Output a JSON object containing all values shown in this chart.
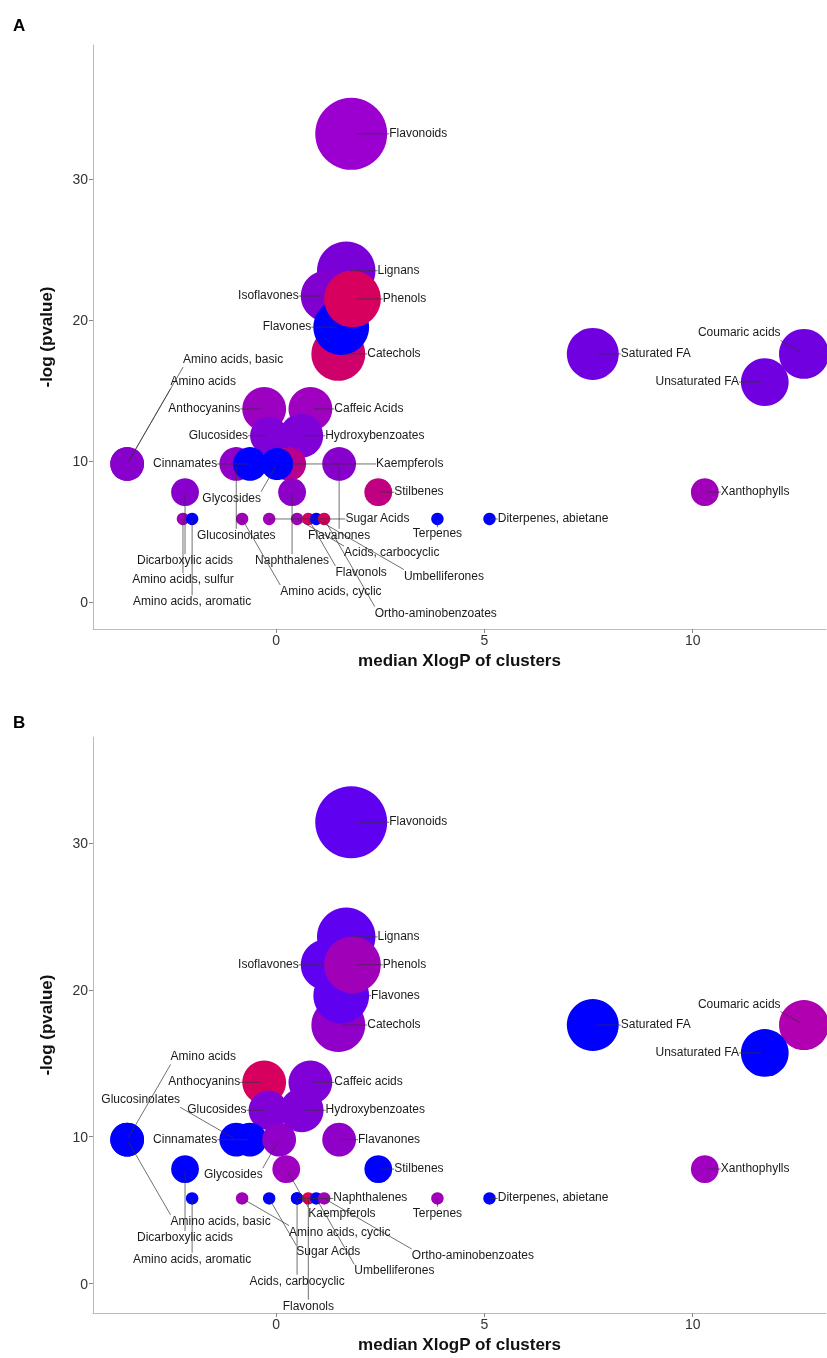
{
  "chart_data": [
    {
      "type": "bubble",
      "title": "A",
      "xlabel": "median XlogP of clusters",
      "ylabel": "-log (pvalue)",
      "xlim": [
        -4.4,
        13.2
      ],
      "ylim": [
        -1.9,
        39.5
      ],
      "xticks": [
        0,
        5,
        10
      ],
      "yticks": [
        0,
        10,
        20,
        30
      ],
      "grid": false,
      "x": [
        1.8,
        1.68,
        1.2,
        1.49,
        1.56,
        1.83,
        7.6,
        12.67,
        11.73,
        -0.29,
        0.82,
        0.6,
        -0.17,
        -0.96,
        -0.63,
        0.31,
        0.02,
        1.51,
        -3.58,
        -3.58,
        -2.19,
        0.38,
        2.45,
        10.29,
        -2.24,
        -2.02,
        -0.82,
        -0.17,
        0.5,
        0.77,
        0.96,
        1.15,
        3.87,
        5.12
      ],
      "values": [
        33.2,
        23.5,
        21.7,
        17.6,
        19.5,
        21.5,
        17.6,
        17.6,
        15.6,
        13.7,
        13.7,
        11.8,
        11.8,
        9.8,
        9.8,
        9.8,
        9.8,
        9.8,
        9.8,
        9.8,
        7.8,
        7.8,
        7.8,
        7.8,
        5.9,
        5.9,
        5.9,
        5.9,
        5.9,
        5.9,
        5.9,
        5.9,
        5.9,
        5.9
      ],
      "sizes": [
        1,
        0.66,
        0.5,
        0.56,
        0.6,
        0.62,
        0.52,
        0.48,
        0.44,
        0.37,
        0.37,
        0.37,
        0.28,
        0.22,
        0.22,
        0.22,
        0.2,
        0.22,
        0.22,
        0.22,
        0.15,
        0.15,
        0.15,
        0.15,
        0.03,
        0.03,
        0.03,
        0.03,
        0.03,
        0.03,
        0.03,
        0.03,
        0.03,
        0.03
      ],
      "colors": [
        "#9b00d0",
        "#7a00d8",
        "#8000d0",
        "#d0006a",
        "#0000ff",
        "#d8005e",
        "#7000e0",
        "#7000e0",
        "#7000e0",
        "#9c00c0",
        "#a000c0",
        "#8000d8",
        "#8000d8",
        "#9000c8",
        "#0000ff",
        "#b8008c",
        "#0000ff",
        "#8800cc",
        "#8800cc",
        "#8800cc",
        "#8800cc",
        "#8c00c8",
        "#c00080",
        "#a000b8",
        "#a000b8",
        "#0000ff",
        "#a000b8",
        "#a000b8",
        "#a000b8",
        "#d8005e",
        "#0000ff",
        "#d8005e",
        "#0000ff",
        "#0000ff"
      ],
      "annotations": [
        {
          "text": "Flavonoids",
          "x": 1.8,
          "y": 33.2
        },
        {
          "text": "Lignans",
          "x": 1.68,
          "y": 23.5
        },
        {
          "text": "Isoflavones",
          "x": 1.2,
          "y": 21.7
        },
        {
          "text": "Catechols",
          "x": 1.49,
          "y": 17.6
        },
        {
          "text": "Flavones",
          "x": 1.56,
          "y": 19.5
        },
        {
          "text": "Phenols",
          "x": 1.83,
          "y": 21.5
        },
        {
          "text": "Saturated FA",
          "x": 7.6,
          "y": 17.6
        },
        {
          "text": "Coumaric acids",
          "x": 12.67,
          "y": 17.6
        },
        {
          "text": "Unsaturated FA",
          "x": 11.73,
          "y": 15.6
        },
        {
          "text": "Anthocyanins",
          "x": -0.29,
          "y": 13.7
        },
        {
          "text": "Caffeic Acids",
          "x": 0.82,
          "y": 13.7
        },
        {
          "text": "Hydroxybenzoates",
          "x": 0.6,
          "y": 11.8
        },
        {
          "text": "Glucosides",
          "x": -0.17,
          "y": 11.8
        },
        {
          "text": "Glucosinolates",
          "x": -0.96,
          "y": 9.8
        },
        {
          "text": "Cinnamates",
          "x": -0.63,
          "y": 9.8
        },
        {
          "text": "Glycosides",
          "x": 0.02,
          "y": 9.8
        },
        {
          "text": "Kaempferols",
          "x": 0.31,
          "y": 9.8
        },
        {
          "text": "Flavanones",
          "x": 1.51,
          "y": 9.8
        },
        {
          "text": "Amino acids",
          "x": -3.58,
          "y": 9.8
        },
        {
          "text": "Amino acids, basic",
          "x": -3.58,
          "y": 9.8
        },
        {
          "text": "Dicarboxylic acids",
          "x": -2.19,
          "y": 7.8
        },
        {
          "text": "Naphthalenes",
          "x": 0.38,
          "y": 7.8
        },
        {
          "text": "Stilbenes",
          "x": 2.45,
          "y": 7.8
        },
        {
          "text": "Xanthophylls",
          "x": 10.29,
          "y": 7.8
        },
        {
          "text": "Amino acids, sulfur",
          "x": -2.24,
          "y": 5.9
        },
        {
          "text": "Amino acids, aromatic",
          "x": -2.02,
          "y": 5.9
        },
        {
          "text": "Amino acids, cyclic",
          "x": -0.82,
          "y": 5.9
        },
        {
          "text": "Sugar Acids",
          "x": -0.17,
          "y": 5.9
        },
        {
          "text": "Acids, carbocyclic",
          "x": 0.5,
          "y": 5.9
        },
        {
          "text": "Flavonols",
          "x": 0.77,
          "y": 5.9
        },
        {
          "text": "Umbelliferones",
          "x": 0.96,
          "y": 5.9
        },
        {
          "text": "Ortho-aminobenzoates",
          "x": 1.15,
          "y": 5.9
        },
        {
          "text": "Terpenes",
          "x": 3.87,
          "y": 5.9
        },
        {
          "text": "Diterpenes, abietane",
          "x": 5.12,
          "y": 5.9
        }
      ]
    },
    {
      "type": "bubble",
      "title": "B",
      "xlabel": "median XlogP of clusters",
      "ylabel": "-log (pvalue)",
      "xlim": [
        -4.4,
        13.2
      ],
      "ylim": [
        -2,
        37.2
      ],
      "xticks": [
        0,
        5,
        10
      ],
      "yticks": [
        0,
        10,
        20,
        30
      ],
      "grid": false,
      "x": [
        1.8,
        1.68,
        1.2,
        1.49,
        1.56,
        1.83,
        7.6,
        12.67,
        11.73,
        -0.29,
        0.82,
        0.61,
        -0.19,
        -0.96,
        -0.63,
        0.07,
        1.51,
        -3.58,
        -3.58,
        -2.19,
        0.24,
        2.45,
        10.29,
        -2.02,
        -0.82,
        -0.17,
        0.5,
        0.5,
        0.77,
        0.96,
        1.15,
        3.87,
        5.12
      ],
      "values": [
        31.4,
        23.6,
        21.7,
        17.6,
        19.6,
        21.7,
        17.6,
        17.6,
        15.7,
        13.7,
        13.7,
        11.8,
        11.8,
        9.8,
        9.8,
        9.8,
        9.8,
        9.8,
        9.8,
        7.8,
        7.8,
        7.8,
        7.8,
        5.8,
        5.8,
        5.8,
        5.8,
        5.8,
        5.8,
        5.8,
        5.8,
        5.8,
        5.8
      ],
      "sizes": [
        1,
        0.66,
        0.5,
        0.56,
        0.6,
        0.62,
        0.52,
        0.48,
        0.44,
        0.37,
        0.37,
        0.37,
        0.3,
        0.22,
        0.22,
        0.22,
        0.22,
        0.22,
        0.22,
        0.15,
        0.15,
        0.15,
        0.15,
        0.03,
        0.03,
        0.03,
        0.03,
        0.03,
        0.03,
        0.03,
        0.03,
        0.03,
        0.03
      ],
      "colors": [
        "#6000f0",
        "#6000f0",
        "#6000f0",
        "#9000c8",
        "#6000f0",
        "#a000b8",
        "#0000ff",
        "#b000b0",
        "#0000ff",
        "#d8005e",
        "#8000d8",
        "#8000d8",
        "#8000d8",
        "#0000ff",
        "#0000ff",
        "#9000c8",
        "#9000c8",
        "#0000ff",
        "#0000ff",
        "#0000ff",
        "#a000c0",
        "#0000ff",
        "#a000c0",
        "#0000ff",
        "#a000b8",
        "#0000ff",
        "#0000ff",
        "#0000ff",
        "#e00050",
        "#0000ff",
        "#a000b8",
        "#a000b8",
        "#0000ff"
      ],
      "annotations": [
        {
          "text": "Flavonoids",
          "x": 1.8,
          "y": 31.4
        },
        {
          "text": "Lignans",
          "x": 1.68,
          "y": 23.6
        },
        {
          "text": "Isoflavones",
          "x": 1.2,
          "y": 21.7
        },
        {
          "text": "Catechols",
          "x": 1.49,
          "y": 17.6
        },
        {
          "text": "Flavones",
          "x": 1.56,
          "y": 19.6
        },
        {
          "text": "Phenols",
          "x": 1.83,
          "y": 21.7
        },
        {
          "text": "Saturated FA",
          "x": 7.6,
          "y": 17.6
        },
        {
          "text": "Coumaric acids",
          "x": 12.67,
          "y": 17.6
        },
        {
          "text": "Unsaturated FA",
          "x": 11.73,
          "y": 15.7
        },
        {
          "text": "Anthocyanins",
          "x": -0.29,
          "y": 13.7
        },
        {
          "text": "Caffeic acids",
          "x": 0.82,
          "y": 13.7
        },
        {
          "text": "Hydroxybenzoates",
          "x": 0.61,
          "y": 11.8
        },
        {
          "text": "Glucosides",
          "x": -0.19,
          "y": 11.8
        },
        {
          "text": "Glucosinolates",
          "x": -0.96,
          "y": 9.8
        },
        {
          "text": "Cinnamates",
          "x": -0.63,
          "y": 9.8
        },
        {
          "text": "Glycosides",
          "x": 0.07,
          "y": 9.8
        },
        {
          "text": "Flavanones",
          "x": 1.51,
          "y": 9.8
        },
        {
          "text": "Amino acids",
          "x": -3.58,
          "y": 9.8
        },
        {
          "text": "Amino acids, basic",
          "x": -3.58,
          "y": 9.8
        },
        {
          "text": "Dicarboxylic acids",
          "x": -2.19,
          "y": 7.8
        },
        {
          "text": "Kaempferols",
          "x": 0.24,
          "y": 7.8
        },
        {
          "text": "Stilbenes",
          "x": 2.45,
          "y": 7.8
        },
        {
          "text": "Xanthophylls",
          "x": 10.29,
          "y": 7.8
        },
        {
          "text": "Amino acids, aromatic",
          "x": -2.02,
          "y": 5.8
        },
        {
          "text": "Amino acids, cyclic",
          "x": -0.82,
          "y": 5.8
        },
        {
          "text": "Sugar Acids",
          "x": -0.17,
          "y": 5.8
        },
        {
          "text": "Naphthalenes",
          "x": 0.5,
          "y": 5.8
        },
        {
          "text": "Acids, carbocyclic",
          "x": 0.5,
          "y": 5.8
        },
        {
          "text": "Flavonols",
          "x": 0.77,
          "y": 5.8
        },
        {
          "text": "Umbelliferones",
          "x": 0.96,
          "y": 5.8
        },
        {
          "text": "Ortho-aminobenzoates",
          "x": 1.15,
          "y": 5.8
        },
        {
          "text": "Terpenes",
          "x": 3.87,
          "y": 5.8
        },
        {
          "text": "Diterpenes, abietane",
          "x": 5.12,
          "y": 5.8
        }
      ]
    }
  ]
}
